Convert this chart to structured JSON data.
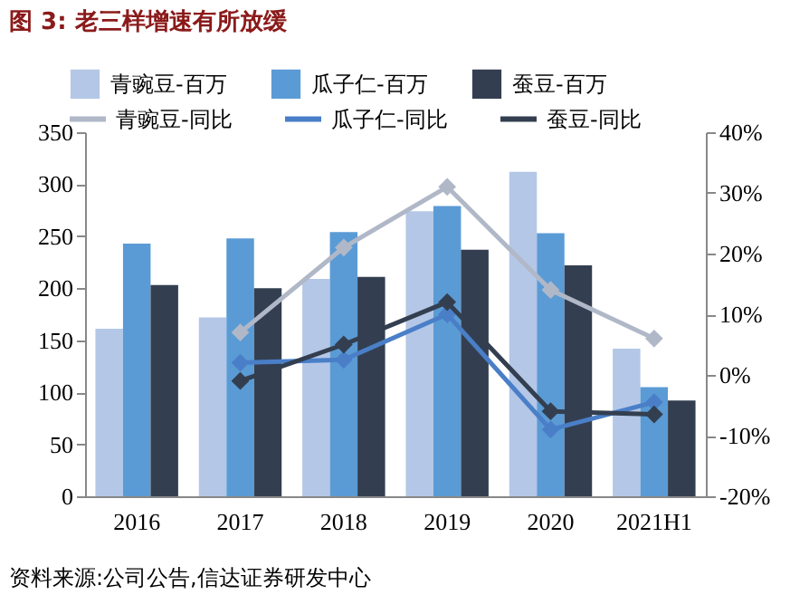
{
  "chart_data": {
    "type": "bar",
    "title": "图 3: 老三样增速有所放缓",
    "categories": [
      "2016",
      "2017",
      "2018",
      "2019",
      "2020",
      "2021H1"
    ],
    "series": [
      {
        "name": "青豌豆-百万",
        "color": "#b4c7e7",
        "values": [
          161,
          172,
          209,
          274,
          312,
          142
        ]
      },
      {
        "name": "瓜子仁-百万",
        "color": "#5b9bd5",
        "values": [
          243,
          248,
          254,
          279,
          253,
          105
        ]
      },
      {
        "name": "蚕豆-百万",
        "color": "#333f50",
        "values": [
          203,
          200,
          211,
          237,
          222,
          92
        ]
      },
      {
        "name": "青豌豆-同比",
        "type": "line",
        "axis": "y2",
        "color": "#b0b8c8",
        "values": [
          null,
          7,
          21,
          31,
          14,
          6
        ]
      },
      {
        "name": "瓜子仁-同比",
        "type": "line",
        "axis": "y2",
        "color": "#4a7fc8",
        "values": [
          null,
          2,
          2.5,
          10,
          -9,
          -4.5
        ]
      },
      {
        "name": "蚕豆-同比",
        "type": "line",
        "axis": "y2",
        "color": "#333f50",
        "values": [
          null,
          -1,
          5,
          12,
          -6,
          -6.5
        ]
      }
    ],
    "ylim": [
      0,
      350
    ],
    "yticks": [
      0,
      50,
      100,
      150,
      200,
      250,
      300,
      350
    ],
    "y2lim": [
      -20,
      40
    ],
    "y2ticks": [
      {
        "value": -20,
        "label": "-20%"
      },
      {
        "value": -10,
        "label": "-10%"
      },
      {
        "value": 0,
        "label": "0%"
      },
      {
        "value": 10,
        "label": "10%"
      },
      {
        "value": 20,
        "label": "20%"
      },
      {
        "value": 30,
        "label": "30%"
      },
      {
        "value": 40,
        "label": "40%"
      }
    ],
    "legend": "top",
    "marker": "diamond",
    "annotations": [
      "资料来源:公司公告,信达证券研发中心"
    ]
  }
}
